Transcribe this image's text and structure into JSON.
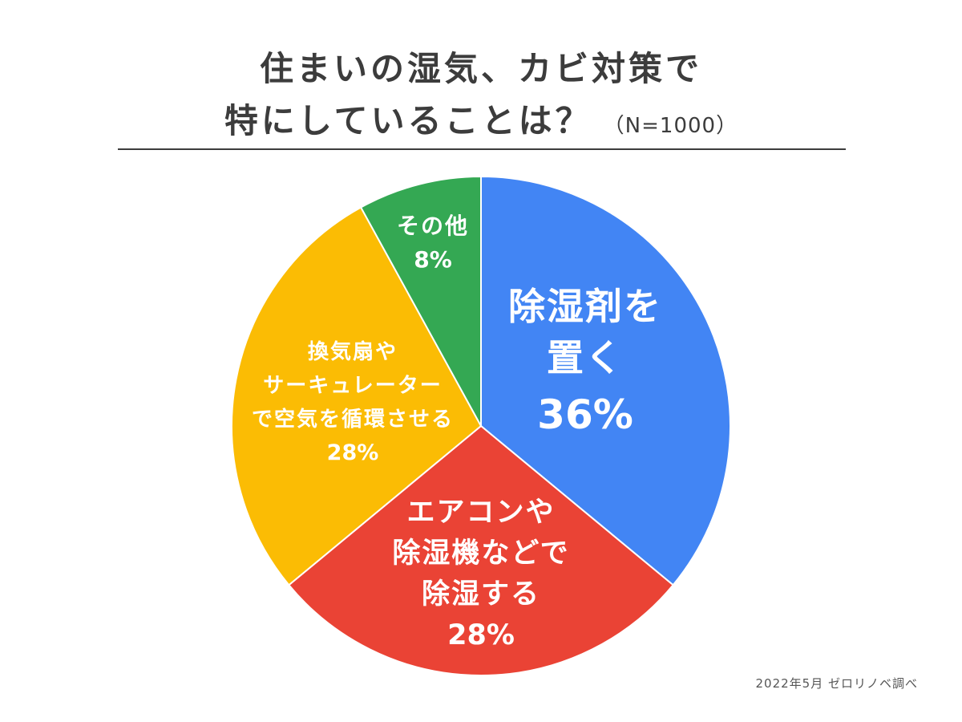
{
  "title": {
    "line1": "住まいの湿気、カビ対策で",
    "line2": "特にしていることは？",
    "sample_size": "（N=1000）"
  },
  "source": "2022年5月 ゼロリノベ調べ",
  "colors": {
    "blue": "#4285f4",
    "red": "#ea4335",
    "yellow": "#fbbc04",
    "green": "#34a853",
    "text": "#3c3c3c"
  },
  "chart_data": {
    "type": "pie",
    "start_angle": "12 o'clock",
    "direction": "clockwise",
    "slices": [
      {
        "label": [
          "除湿剤を",
          "置く"
        ],
        "value": 36,
        "display": "36%",
        "color": "#4285f4"
      },
      {
        "label": [
          "エアコンや",
          "除湿機などで",
          "除湿する"
        ],
        "value": 28,
        "display": "28%",
        "color": "#ea4335"
      },
      {
        "label": [
          "換気扇や",
          "サーキュレーター",
          "で空気を循環させる"
        ],
        "value": 28,
        "display": "28%",
        "color": "#fbbc04"
      },
      {
        "label": [
          "その他"
        ],
        "value": 8,
        "display": "8%",
        "color": "#34a853"
      }
    ]
  }
}
